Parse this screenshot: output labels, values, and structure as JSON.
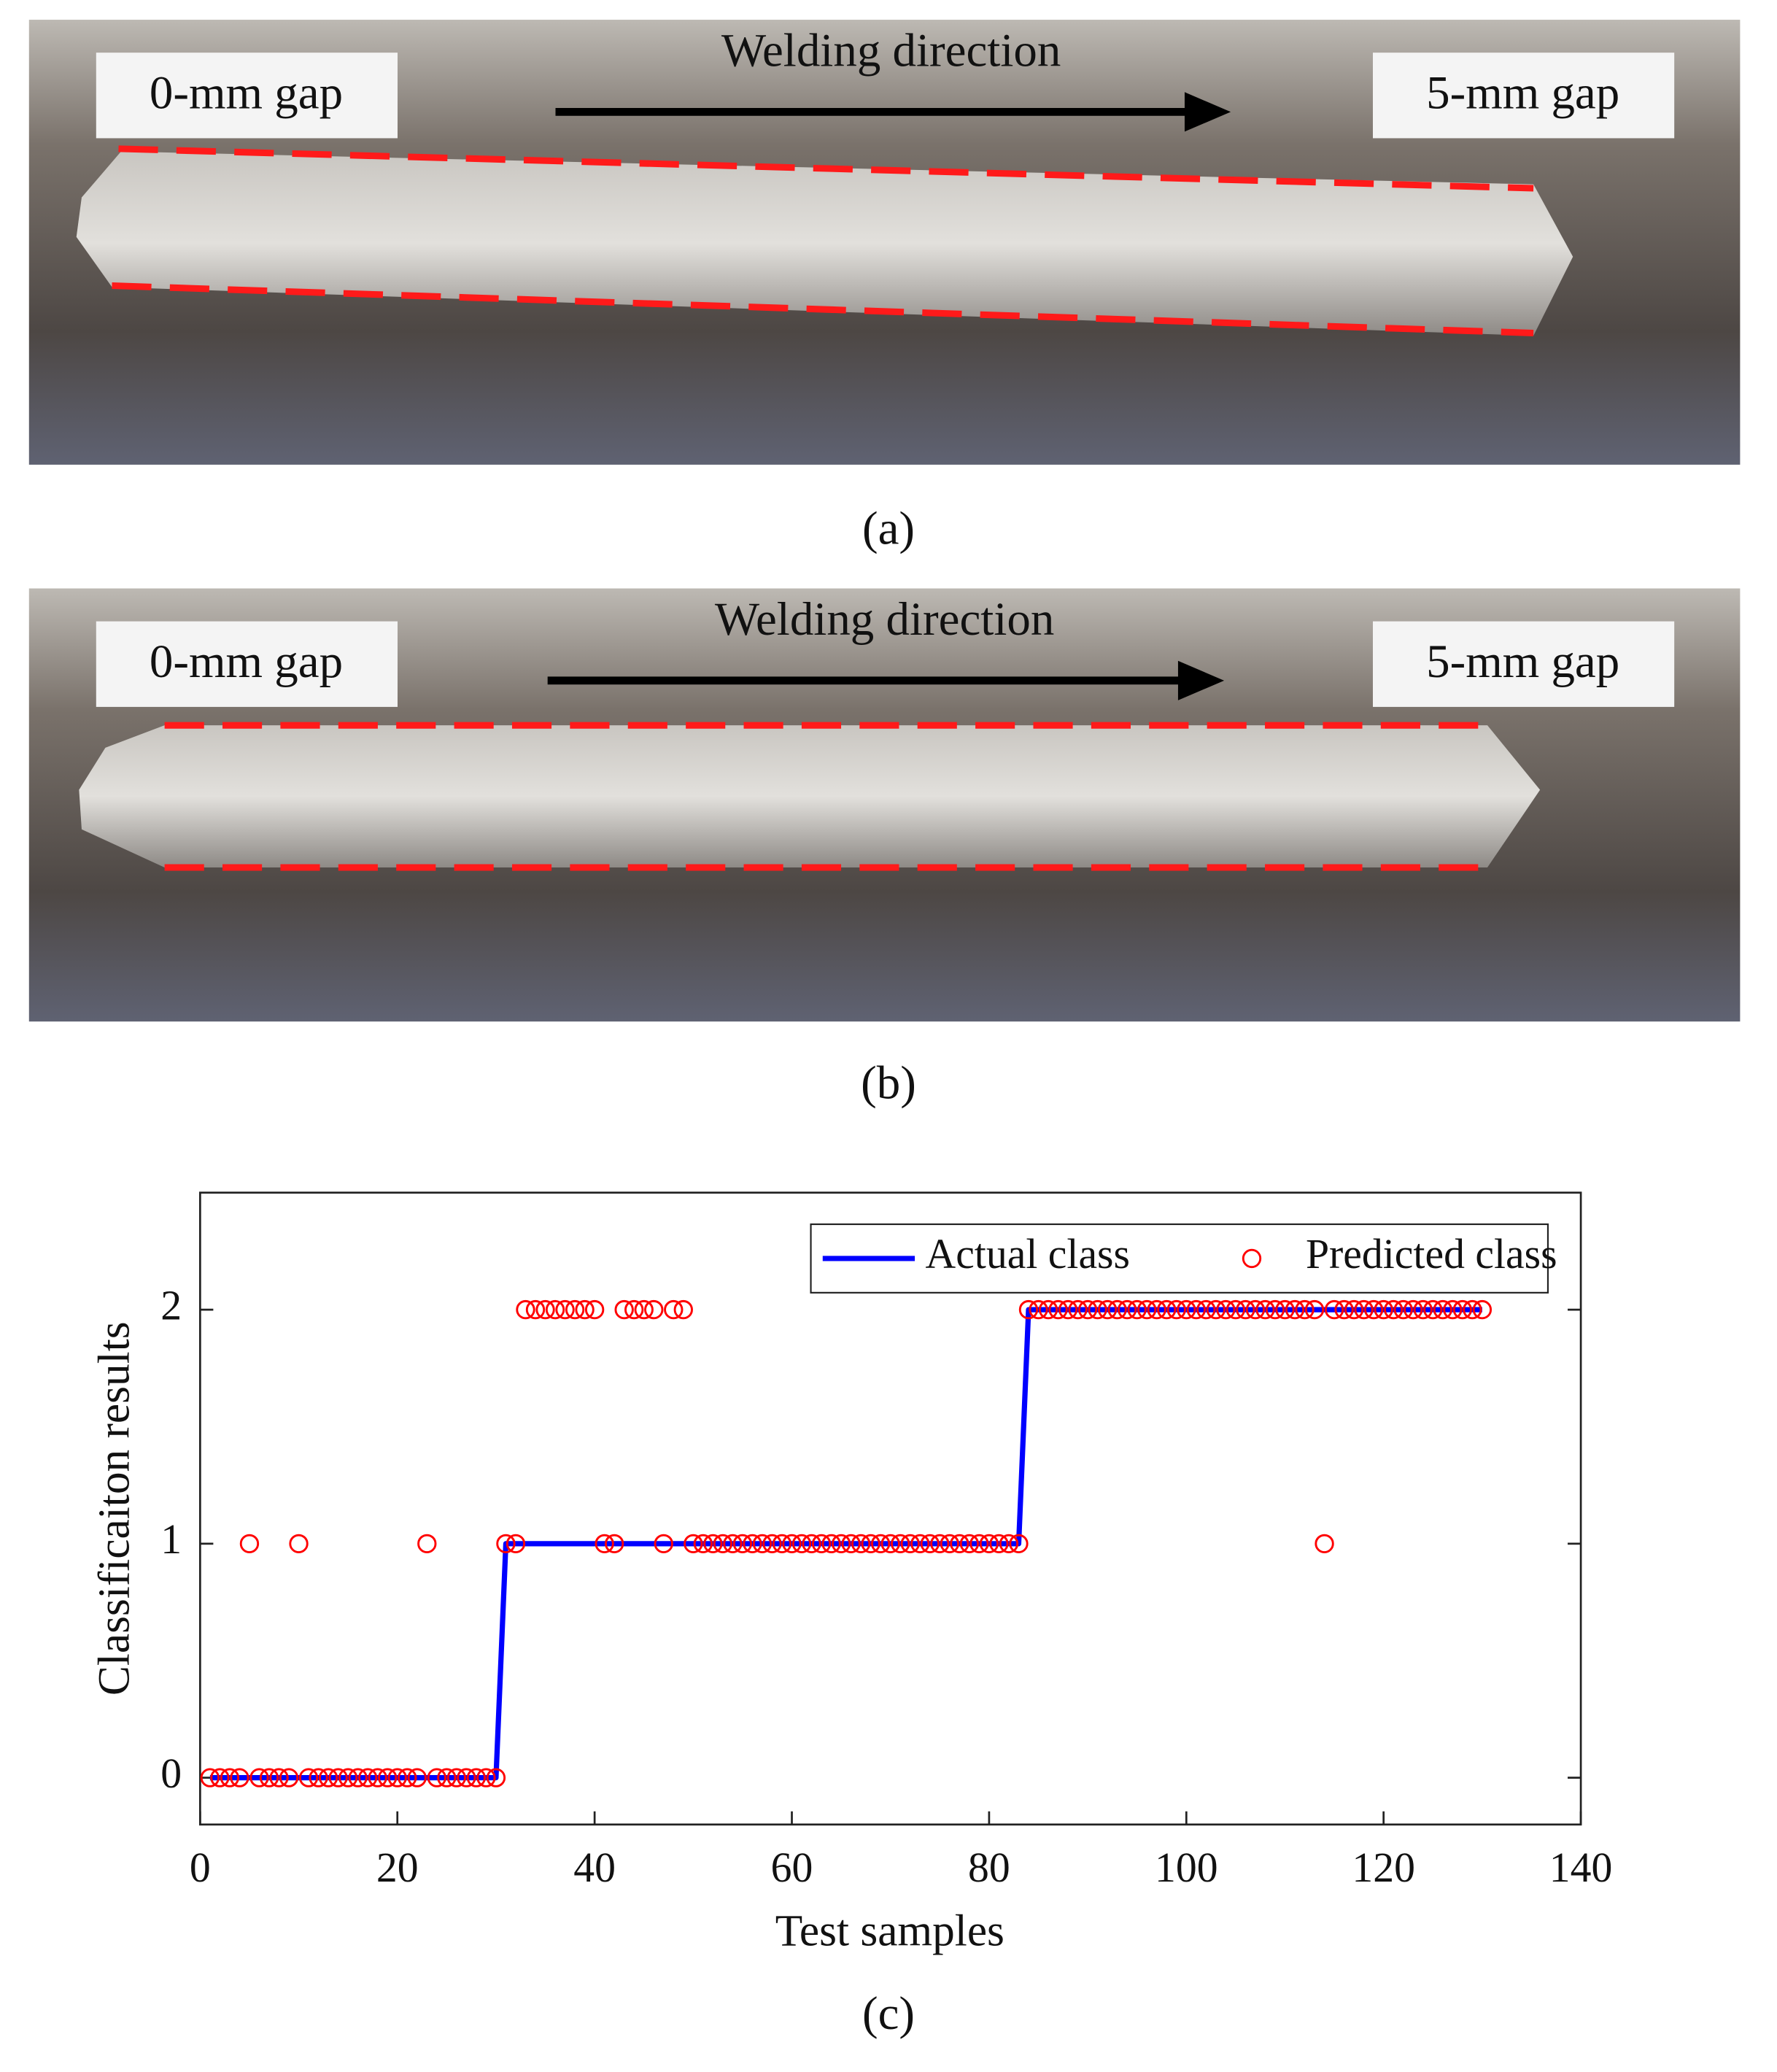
{
  "panels": [
    {
      "left_label": "0-mm gap",
      "direction": "Welding direction",
      "right_label": "5-mm gap",
      "caption": "(a)"
    },
    {
      "left_label": "0-mm gap",
      "direction": "Welding direction",
      "right_label": "5-mm gap",
      "caption": "(b)"
    }
  ],
  "chart_data": {
    "type": "line",
    "caption": "(c)",
    "x_label": "Test samples",
    "y_label": "Classificaiton results",
    "x": [
      1,
      2,
      3,
      4,
      5,
      6,
      7,
      8,
      9,
      10,
      11,
      12,
      13,
      14,
      15,
      16,
      17,
      18,
      19,
      20,
      21,
      22,
      23,
      24,
      25,
      26,
      27,
      28,
      29,
      30,
      31,
      32,
      33,
      34,
      35,
      36,
      37,
      38,
      39,
      40,
      41,
      42,
      43,
      44,
      45,
      46,
      47,
      48,
      49,
      50,
      51,
      52,
      53,
      54,
      55,
      56,
      57,
      58,
      59,
      60,
      61,
      62,
      63,
      64,
      65,
      66,
      67,
      68,
      69,
      70,
      71,
      72,
      73,
      74,
      75,
      76,
      77,
      78,
      79,
      80,
      81,
      82,
      83,
      84,
      85,
      86,
      87,
      88,
      89,
      90,
      91,
      92,
      93,
      94,
      95,
      96,
      97,
      98,
      99,
      100,
      101,
      102,
      103,
      104,
      105,
      106,
      107,
      108,
      109,
      110,
      111,
      112,
      113,
      114,
      115,
      116,
      117,
      118,
      119,
      120,
      121,
      122,
      123,
      124,
      125,
      126,
      127,
      128,
      129,
      130
    ],
    "series": [
      {
        "name": "Actual class",
        "color": "#0000ff",
        "mode": "line",
        "values": [
          0,
          0,
          0,
          0,
          0,
          0,
          0,
          0,
          0,
          0,
          0,
          0,
          0,
          0,
          0,
          0,
          0,
          0,
          0,
          0,
          0,
          0,
          0,
          0,
          0,
          0,
          0,
          0,
          0,
          0,
          1,
          1,
          1,
          1,
          1,
          1,
          1,
          1,
          1,
          1,
          1,
          1,
          1,
          1,
          1,
          1,
          1,
          1,
          1,
          1,
          1,
          1,
          1,
          1,
          1,
          1,
          1,
          1,
          1,
          1,
          1,
          1,
          1,
          1,
          1,
          1,
          1,
          1,
          1,
          1,
          1,
          1,
          1,
          1,
          1,
          1,
          1,
          1,
          1,
          1,
          1,
          1,
          1,
          2,
          2,
          2,
          2,
          2,
          2,
          2,
          2,
          2,
          2,
          2,
          2,
          2,
          2,
          2,
          2,
          2,
          2,
          2,
          2,
          2,
          2,
          2,
          2,
          2,
          2,
          2,
          2,
          2,
          2,
          2,
          2,
          2,
          2,
          2,
          2,
          2,
          2,
          2,
          2,
          2,
          2,
          2,
          2,
          2,
          2,
          2
        ]
      },
      {
        "name": "Predicted class",
        "color": "#ff0000",
        "mode": "markers",
        "values": [
          0,
          0,
          0,
          0,
          1,
          0,
          0,
          0,
          0,
          1,
          0,
          0,
          0,
          0,
          0,
          0,
          0,
          0,
          0,
          0,
          0,
          0,
          1,
          0,
          0,
          0,
          0,
          0,
          0,
          0,
          1,
          1,
          2,
          2,
          2,
          2,
          2,
          2,
          2,
          2,
          1,
          1,
          2,
          2,
          2,
          2,
          1,
          2,
          2,
          1,
          1,
          1,
          1,
          1,
          1,
          1,
          1,
          1,
          1,
          1,
          1,
          1,
          1,
          1,
          1,
          1,
          1,
          1,
          1,
          1,
          1,
          1,
          1,
          1,
          1,
          1,
          1,
          1,
          1,
          1,
          1,
          1,
          1,
          2,
          2,
          2,
          2,
          2,
          2,
          2,
          2,
          2,
          2,
          2,
          2,
          2,
          2,
          2,
          2,
          2,
          2,
          2,
          2,
          2,
          2,
          2,
          2,
          2,
          2,
          2,
          2,
          2,
          2,
          1,
          2,
          2,
          2,
          2,
          2,
          2,
          2,
          2,
          2,
          2,
          2,
          2,
          2,
          2,
          2,
          2
        ]
      }
    ],
    "xlim": [
      0,
      140
    ],
    "xticks": [
      0,
      20,
      40,
      60,
      80,
      100,
      120,
      140
    ],
    "ylim": [
      -0.2,
      2.5
    ],
    "yticks": [
      0,
      1,
      2
    ],
    "legend": "upper right"
  }
}
